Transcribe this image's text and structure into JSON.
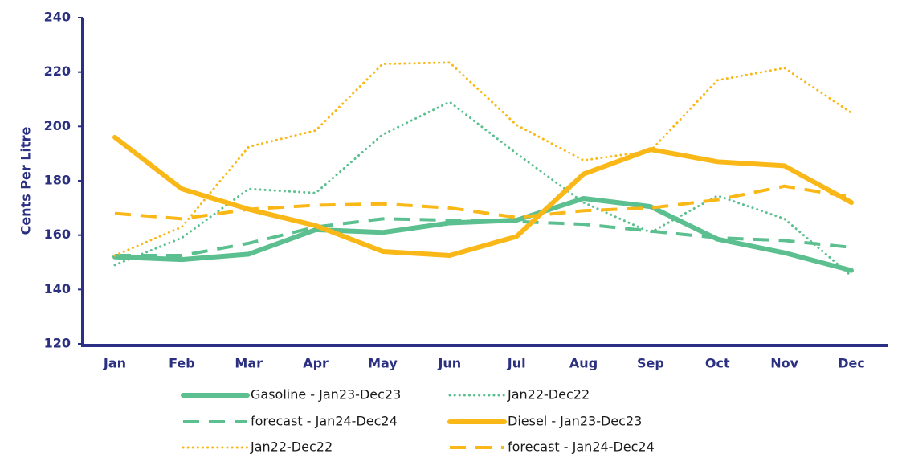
{
  "chart_data": {
    "type": "line",
    "ylabel": "Cents Per Litre",
    "categories": [
      "Jan",
      "Feb",
      "Mar",
      "Apr",
      "May",
      "Jun",
      "Jul",
      "Aug",
      "Sep",
      "Oct",
      "Nov",
      "Dec"
    ],
    "ylim": [
      120,
      240
    ],
    "yticks": [
      120,
      140,
      160,
      180,
      200,
      220,
      240
    ],
    "series": [
      {
        "name": "Gasoline - Jan23-Dec23",
        "color": "#5bbf8f",
        "dash": "solid",
        "values": [
          152,
          151,
          153,
          162,
          161,
          164.5,
          165.5,
          173.5,
          170.5,
          158.5,
          153.5,
          147
        ]
      },
      {
        "name": "Jan22-Dec22",
        "color": "#5bbf8f",
        "dash": "dotted",
        "values": [
          149,
          159,
          177,
          175.5,
          197,
          209,
          190,
          172,
          161,
          174.5,
          166,
          145
        ]
      },
      {
        "name": "forecast - Jan24-Dec24",
        "color": "#5bbf8f",
        "dash": "dashed",
        "values": [
          152.5,
          152.5,
          157,
          163,
          166,
          165.5,
          165,
          164,
          161.5,
          159,
          158,
          155.5
        ]
      },
      {
        "name": "Diesel - Jan23-Dec23",
        "color": "#f9b817",
        "dash": "solid",
        "values": [
          196,
          177,
          169.5,
          163.5,
          154,
          152.5,
          159.5,
          182.5,
          191.5,
          187,
          185.5,
          172
        ]
      },
      {
        "name": "Jan22-Dec22",
        "color": "#f9b817",
        "dash": "dotted",
        "values": [
          152.5,
          163,
          192.5,
          198.5,
          223,
          223.5,
          200.5,
          187.5,
          191,
          217,
          221.5,
          205
        ]
      },
      {
        "name": "forecast - Jan24-Dec24",
        "color": "#f9b817",
        "dash": "dashed",
        "values": [
          168,
          166,
          169.5,
          171,
          171.5,
          170,
          166.5,
          169,
          170,
          173,
          178,
          174
        ]
      }
    ]
  }
}
